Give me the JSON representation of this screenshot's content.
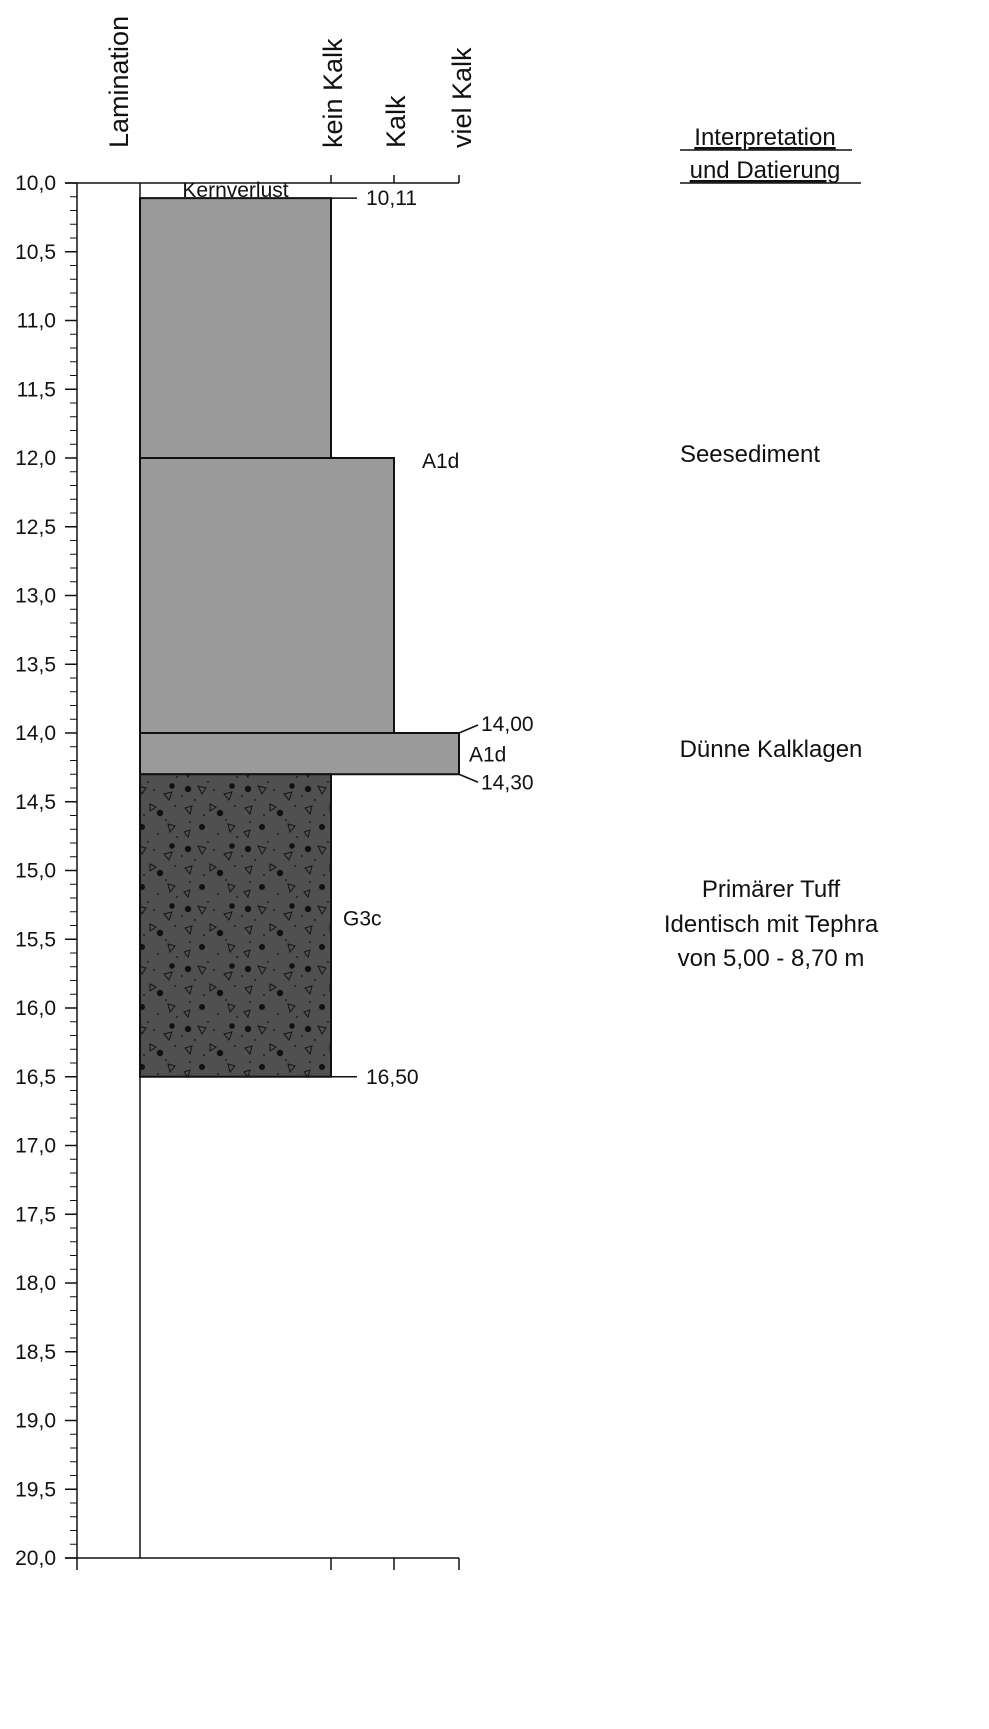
{
  "column_headers": {
    "lamination": "Lamination",
    "kein_kalk": "kein Kalk",
    "kalk": "Kalk",
    "viel_kalk": "viel Kalk"
  },
  "interpretation_header": [
    "Interpretation",
    "und Datierung"
  ],
  "colors": {
    "sediment": "#9a9a9a",
    "tuff": "#505050",
    "line": "#111111"
  },
  "chart_data": {
    "type": "table",
    "depth_range": [
      10.0,
      20.0
    ],
    "depth_ticks": [
      "10,0",
      "10,5",
      "11,0",
      "11,5",
      "12,0",
      "12,5",
      "13,0",
      "13,5",
      "14,0",
      "14,5",
      "15,0",
      "15,5",
      "16,0",
      "16,5",
      "17,0",
      "17,5",
      "18,0",
      "18,5",
      "19,0",
      "19,5",
      "20,0"
    ],
    "core_loss": {
      "label": "Kernverlust",
      "top": 10.0,
      "bottom": 10.11
    },
    "boundaries": [
      {
        "depth": 10.11,
        "label": "10,11"
      },
      {
        "depth": 14.0,
        "label": "14,00"
      },
      {
        "depth": 14.3,
        "label": "14,30"
      },
      {
        "depth": 16.5,
        "label": "16,50"
      }
    ],
    "layers": [
      {
        "top": 10.11,
        "bottom": 12.0,
        "lime": "kein Kalk",
        "type": "sediment"
      },
      {
        "top": 12.0,
        "bottom": 14.0,
        "lime": "Kalk",
        "type": "sediment",
        "unit": "A1d"
      },
      {
        "top": 14.0,
        "bottom": 14.3,
        "lime": "viel Kalk",
        "type": "sediment",
        "unit": "A1d"
      },
      {
        "top": 14.3,
        "bottom": 16.5,
        "lime": "kein Kalk",
        "type": "tuff",
        "unit": "G3c"
      }
    ],
    "interpretations": [
      {
        "lines": [
          "Seesediment"
        ]
      },
      {
        "lines": [
          "Dünne Kalklagen"
        ]
      },
      {
        "lines": [
          "Primärer Tuff",
          "Identisch mit Tephra",
          "von 5,00 - 8,70 m"
        ]
      }
    ]
  }
}
